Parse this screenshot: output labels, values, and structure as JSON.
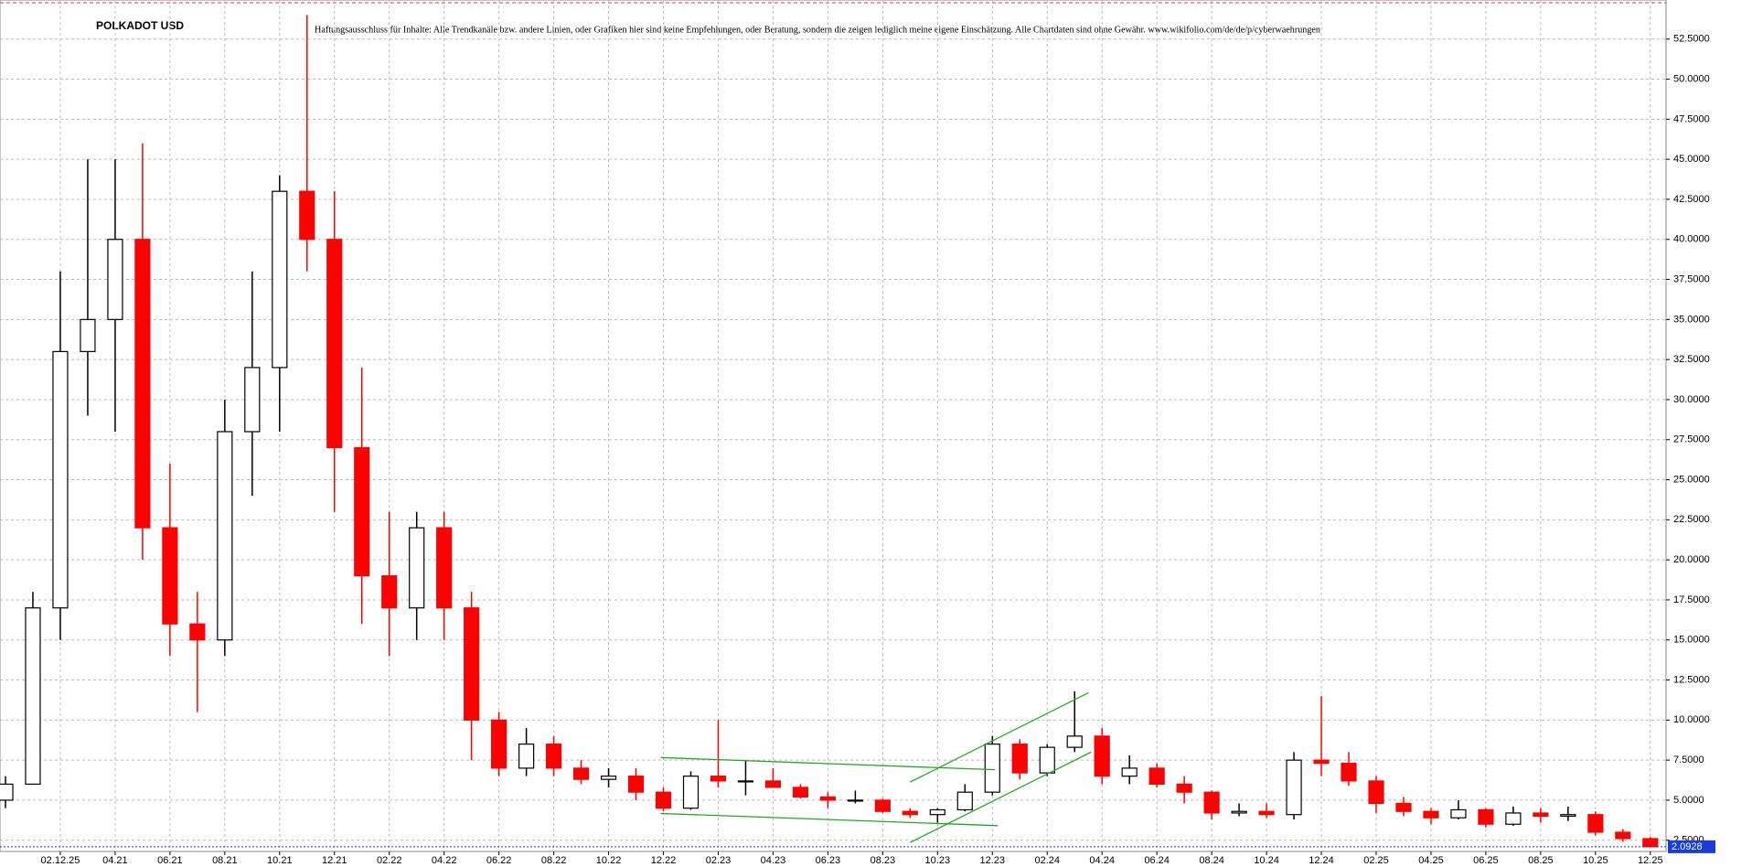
{
  "chart_data": {
    "type": "candlestick",
    "title": "POLKADOT USD",
    "subtitle": "Haftungsausschluss für Inhalte: Alle Trendkanäle bzw. andere Linien, oder Grafiken hier sind keine Empfehlungen, oder Beratung, sondern die zeigen lediglich meine eigene Einschätzung. Alle Chartdaten sind ohne Gewähr. www.wikifolio.com/de/de/p/cyberwaehrungen",
    "categories": [
      null,
      null,
      "02.12.25",
      null,
      "04.21",
      null,
      "06.21",
      null,
      "08.21",
      null,
      "10.21",
      null,
      "12.21",
      null,
      "02.22",
      null,
      "04.22",
      null,
      "06.22",
      null,
      "08.22",
      null,
      "10.22",
      null,
      "12.22",
      null,
      "02.23",
      null,
      "04.23",
      null,
      "06.23",
      null,
      "08.23",
      null,
      "10.23",
      null,
      "12.23",
      null,
      "02.24",
      null,
      "04.24",
      null,
      "06.24",
      null,
      "08.24",
      null,
      "10.24",
      null,
      "12.24",
      null,
      "02.25",
      null,
      "04.25",
      null,
      "06.25",
      null,
      "08.25",
      null,
      "10.25",
      null,
      "12.25"
    ],
    "open": [
      5.0,
      6.0,
      17,
      33,
      35,
      40,
      22,
      16,
      15,
      28,
      32,
      43,
      40,
      27,
      19,
      17,
      22,
      17,
      10,
      7,
      8.5,
      7,
      6.3,
      6.5,
      5.5,
      4.5,
      6.5,
      6.2,
      6.2,
      5.8,
      5.2,
      5.0,
      5.0,
      4.3,
      4.1,
      4.4,
      5.5,
      8.5,
      6.7,
      8.3,
      9.0,
      6.5,
      7.0,
      6.0,
      5.5,
      4.2,
      4.3,
      4.1,
      7.5,
      7.3,
      6.2,
      4.8,
      4.3,
      3.9,
      4.4,
      3.5,
      4.2,
      4.0,
      4.1,
      3.0,
      2.6
    ],
    "high": [
      6.5,
      18,
      38,
      45,
      45,
      46,
      26,
      18,
      30,
      38,
      44,
      54,
      43,
      32,
      23,
      23,
      23,
      18,
      10.5,
      9.5,
      9,
      7.5,
      7,
      7,
      5.8,
      6.8,
      10,
      7.5,
      7,
      6,
      5.5,
      5.6,
      5.1,
      4.5,
      4.5,
      6,
      9,
      8.8,
      8.5,
      11.8,
      9.5,
      7.8,
      7.3,
      6.5,
      5.6,
      4.8,
      4.8,
      8,
      11.5,
      8,
      6.5,
      5.2,
      4.5,
      5.0,
      4.5,
      4.6,
      4.5,
      4.6,
      4.3,
      3.2,
      2.7
    ],
    "low": [
      4.5,
      6,
      15,
      29,
      28,
      20,
      14,
      10.5,
      14,
      24,
      28,
      38,
      23,
      16,
      14,
      15,
      15,
      7.5,
      6.5,
      6.5,
      6.5,
      6,
      5.8,
      5,
      4.3,
      4.4,
      5.8,
      5.3,
      5.8,
      5.1,
      4.5,
      4.8,
      4.2,
      3.9,
      3.6,
      4.3,
      5.3,
      6.3,
      6.5,
      8.0,
      6.0,
      6.0,
      5.8,
      4.8,
      3.8,
      4.0,
      3.9,
      3.8,
      6.5,
      5.9,
      4.2,
      4.0,
      3.5,
      3.8,
      3.3,
      3.4,
      3.6,
      3.7,
      2.8,
      2.4,
      2.05
    ],
    "close": [
      6.0,
      17,
      33,
      35,
      40,
      22,
      16,
      15,
      28,
      32,
      43,
      40,
      27,
      19,
      17,
      22,
      17,
      10,
      7,
      8.5,
      7,
      6.3,
      6.5,
      5.5,
      4.5,
      6.5,
      6.2,
      6.2,
      5.8,
      5.2,
      5.0,
      5.0,
      4.3,
      4.1,
      4.4,
      5.5,
      8.5,
      6.7,
      8.3,
      9.0,
      6.5,
      7.0,
      6.0,
      5.5,
      4.2,
      4.3,
      4.1,
      7.5,
      7.3,
      6.2,
      4.8,
      4.3,
      3.9,
      4.4,
      3.5,
      4.2,
      4.0,
      4.1,
      3.0,
      2.6,
      2.0928
    ],
    "up_color": "#000000",
    "down_color": "#ff0000",
    "ylim": [
      1.8,
      54.94
    ],
    "yticks": [
      {
        "value": 2.5,
        "label": "2.5000"
      },
      {
        "value": 5,
        "label": "5.0000"
      },
      {
        "value": 7.5,
        "label": "7.5000"
      },
      {
        "value": 10,
        "label": "10.0000"
      },
      {
        "value": 12.5,
        "label": "12.5000"
      },
      {
        "value": 15,
        "label": "15.0000"
      },
      {
        "value": 17.5,
        "label": "17.5000"
      },
      {
        "value": 20,
        "label": "20.0000"
      },
      {
        "value": 22.5,
        "label": "22.5000"
      },
      {
        "value": 25,
        "label": "25.0000"
      },
      {
        "value": 27.5,
        "label": "27.5000"
      },
      {
        "value": 30,
        "label": "30.0000"
      },
      {
        "value": 32.5,
        "label": "32.5000"
      },
      {
        "value": 35,
        "label": "35.0000"
      },
      {
        "value": 37.5,
        "label": "37.5000"
      },
      {
        "value": 40,
        "label": "40.0000"
      },
      {
        "value": 42.5,
        "label": "42.5000"
      },
      {
        "value": 45,
        "label": "45.0000"
      },
      {
        "value": 47.5,
        "label": "47.5000"
      },
      {
        "value": 50,
        "label": "50.0000"
      },
      {
        "value": 52.5,
        "label": "52.5000"
      }
    ],
    "grid": true,
    "trendlines": [
      {
        "x": [
          23.9,
          36.1
        ],
        "y": [
          7.66,
          6.9
        ],
        "color": "#22aa22"
      },
      {
        "x": [
          23.9,
          36.2
        ],
        "y": [
          4.17,
          3.41
        ],
        "color": "#22aa22"
      },
      {
        "x": [
          33.0,
          39.5
        ],
        "y": [
          6.13,
          11.7
        ],
        "color": "#22aa22"
      },
      {
        "x": [
          33.0,
          39.6
        ],
        "y": [
          2.36,
          8.0
        ],
        "color": "#22aa22"
      }
    ],
    "last_price_color": "#1a3adf"
  }
}
